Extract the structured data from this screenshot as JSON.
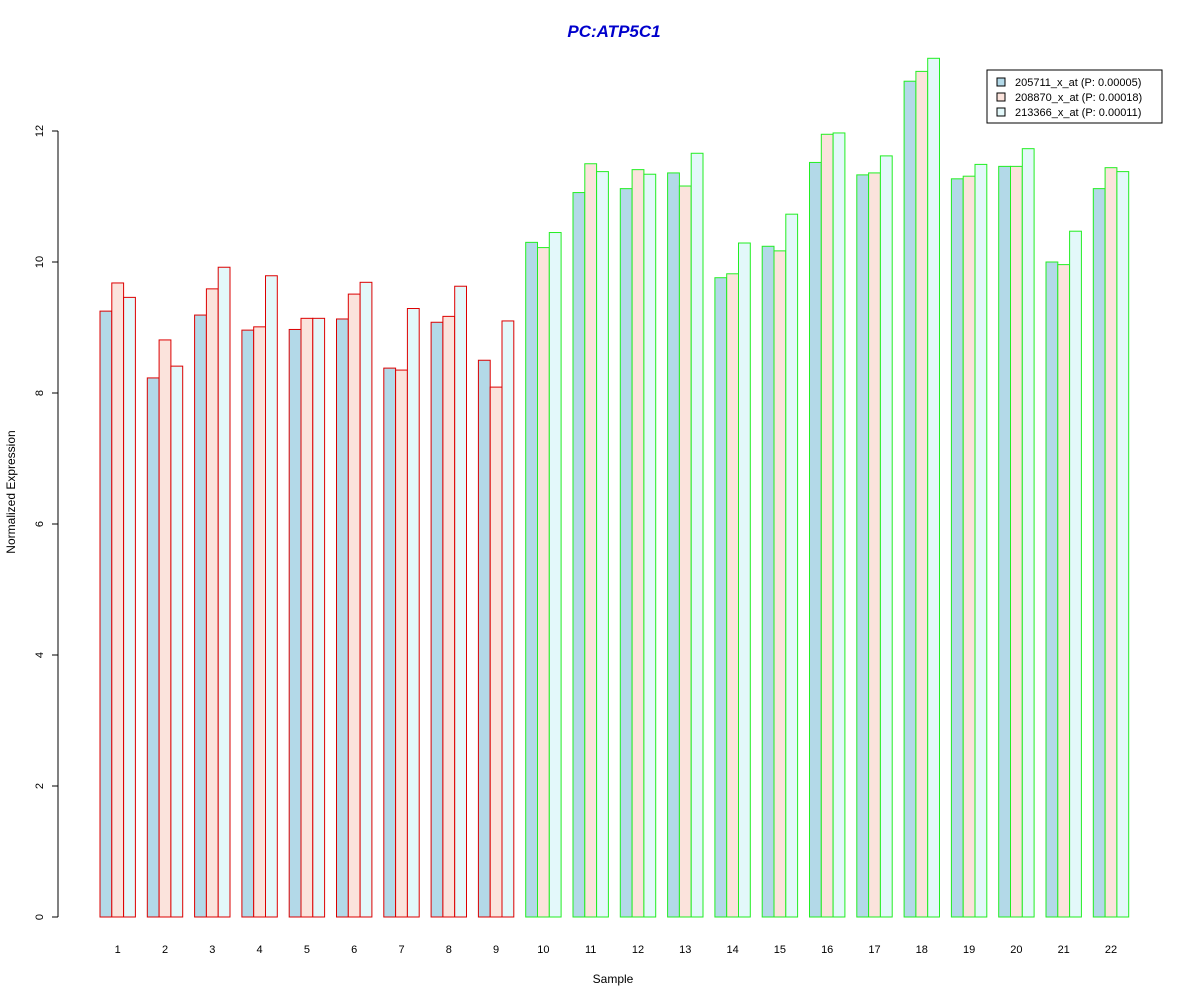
{
  "chart_data": {
    "type": "bar",
    "title": "PC:ATP5C1",
    "xlabel": "Sample",
    "ylabel": "Normalized Expression",
    "ylim": [
      0,
      13
    ],
    "yticks": [
      0,
      2,
      4,
      6,
      8,
      10,
      12
    ],
    "categories": [
      "1",
      "2",
      "3",
      "4",
      "5",
      "6",
      "7",
      "8",
      "9",
      "10",
      "11",
      "12",
      "13",
      "14",
      "15",
      "16",
      "17",
      "18",
      "19",
      "20",
      "21",
      "22"
    ],
    "group_border_colors": [
      "#dd0000",
      "#dd0000",
      "#dd0000",
      "#dd0000",
      "#dd0000",
      "#dd0000",
      "#dd0000",
      "#dd0000",
      "#dd0000",
      "#22ee22",
      "#22ee22",
      "#22ee22",
      "#22ee22",
      "#22ee22",
      "#22ee22",
      "#22ee22",
      "#22ee22",
      "#22ee22",
      "#22ee22",
      "#22ee22",
      "#22ee22",
      "#22ee22"
    ],
    "legend_position": "top-right",
    "grid": false,
    "series": [
      {
        "name": "205711_x_at (P: 0.00005)",
        "fill_color": "#b3d9e8",
        "values": [
          9.25,
          8.23,
          9.19,
          8.96,
          8.97,
          9.13,
          8.38,
          9.08,
          8.5,
          10.3,
          11.06,
          11.12,
          11.36,
          9.76,
          10.24,
          11.52,
          11.33,
          12.76,
          11.27,
          11.46,
          10.0,
          11.12
        ]
      },
      {
        "name": "208870_x_at (P: 0.00018)",
        "fill_color": "#fbe3dc",
        "values": [
          9.68,
          8.81,
          9.59,
          9.01,
          9.14,
          9.51,
          8.35,
          9.17,
          8.09,
          10.22,
          11.5,
          11.41,
          11.16,
          9.82,
          10.17,
          11.95,
          11.36,
          12.91,
          11.31,
          11.46,
          9.96,
          11.44
        ]
      },
      {
        "name": "213366_x_at (P: 0.00011)",
        "fill_color": "#e3f8fa",
        "values": [
          9.46,
          8.41,
          9.92,
          9.79,
          9.14,
          9.69,
          9.29,
          9.63,
          9.1,
          10.45,
          11.38,
          11.34,
          11.66,
          10.29,
          10.73,
          11.97,
          11.62,
          13.11,
          11.49,
          11.73,
          10.47,
          11.38
        ]
      }
    ]
  }
}
